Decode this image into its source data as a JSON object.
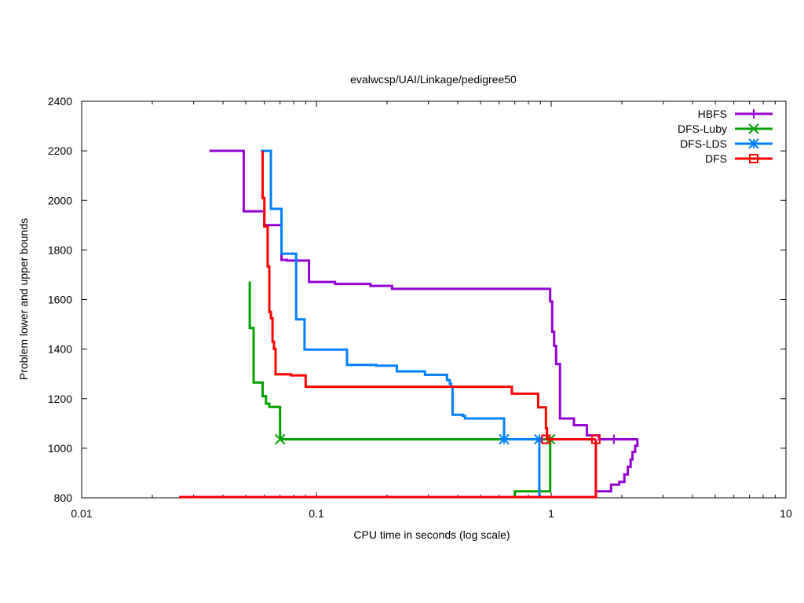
{
  "chart_data": {
    "type": "line",
    "title": "evalwcsp/UAI/Linkage/pedigree50",
    "xlabel": "CPU time in seconds (log scale)",
    "ylabel": "Problem lower and upper bounds",
    "xscale": "log",
    "xlim": [
      0.01,
      10
    ],
    "ylim": [
      800,
      2400
    ],
    "x_ticks": [
      0.01,
      0.1,
      1,
      10
    ],
    "x_tick_labels": [
      "0.01",
      "0.1",
      "1",
      "10"
    ],
    "y_ticks": [
      800,
      1000,
      1200,
      1400,
      1600,
      1800,
      2000,
      2200,
      2400
    ],
    "y_tick_labels": [
      "800",
      "1000",
      "1200",
      "1400",
      "1600",
      "1800",
      "2000",
      "2200",
      "2400"
    ],
    "legend_position": "top-right",
    "grid": false,
    "series": [
      {
        "name": "HBFS",
        "color": "#9400d3",
        "marker": "plus",
        "marker_at": [
          [
            1.85,
            1036
          ]
        ],
        "upper": [
          [
            0.035,
            2200
          ],
          [
            0.049,
            2200
          ],
          [
            0.049,
            1956
          ],
          [
            0.06,
            1956
          ],
          [
            0.06,
            1900
          ],
          [
            0.071,
            1900
          ],
          [
            0.071,
            1760
          ],
          [
            0.075,
            1760
          ],
          [
            0.075,
            1757
          ],
          [
            0.093,
            1757
          ],
          [
            0.093,
            1671
          ],
          [
            0.12,
            1671
          ],
          [
            0.12,
            1663
          ],
          [
            0.17,
            1663
          ],
          [
            0.17,
            1655
          ],
          [
            0.21,
            1655
          ],
          [
            0.21,
            1643
          ],
          [
            0.99,
            1643
          ],
          [
            0.99,
            1592
          ],
          [
            1.01,
            1592
          ],
          [
            1.01,
            1470
          ],
          [
            1.03,
            1470
          ],
          [
            1.03,
            1413
          ],
          [
            1.05,
            1413
          ],
          [
            1.05,
            1340
          ],
          [
            1.09,
            1340
          ],
          [
            1.09,
            1120
          ],
          [
            1.25,
            1120
          ],
          [
            1.25,
            1093
          ],
          [
            1.42,
            1093
          ],
          [
            1.42,
            1052
          ],
          [
            1.6,
            1052
          ],
          [
            1.6,
            1036
          ],
          [
            2.35,
            1036
          ]
        ],
        "lower": [
          [
            0.026,
            803
          ],
          [
            1.55,
            803
          ],
          [
            1.55,
            826
          ],
          [
            1.8,
            826
          ],
          [
            1.8,
            853
          ],
          [
            1.95,
            853
          ],
          [
            1.95,
            864
          ],
          [
            2.05,
            864
          ],
          [
            2.05,
            894
          ],
          [
            2.12,
            894
          ],
          [
            2.12,
            925
          ],
          [
            2.18,
            925
          ],
          [
            2.18,
            955
          ],
          [
            2.22,
            955
          ],
          [
            2.22,
            985
          ],
          [
            2.28,
            985
          ],
          [
            2.28,
            1010
          ],
          [
            2.33,
            1010
          ],
          [
            2.33,
            1036
          ]
        ]
      },
      {
        "name": "DFS-Luby",
        "color": "#00a000",
        "marker": "x",
        "marker_at": [
          [
            0.07,
            1036
          ],
          [
            0.99,
            1036
          ]
        ],
        "upper": [
          [
            0.052,
            1673
          ],
          [
            0.052,
            1485
          ],
          [
            0.054,
            1485
          ],
          [
            0.054,
            1265
          ],
          [
            0.059,
            1265
          ],
          [
            0.059,
            1210
          ],
          [
            0.061,
            1210
          ],
          [
            0.061,
            1180
          ],
          [
            0.063,
            1180
          ],
          [
            0.063,
            1167
          ],
          [
            0.07,
            1167
          ],
          [
            0.07,
            1036
          ],
          [
            0.99,
            1036
          ]
        ],
        "lower": [
          [
            0.7,
            803
          ],
          [
            0.7,
            826
          ],
          [
            0.99,
            826
          ],
          [
            0.99,
            1036
          ]
        ]
      },
      {
        "name": "DFS-LDS",
        "color": "#0080ff",
        "marker": "star",
        "marker_at": [
          [
            0.63,
            1036
          ],
          [
            0.89,
            1036
          ]
        ],
        "upper": [
          [
            0.058,
            2200
          ],
          [
            0.064,
            2200
          ],
          [
            0.064,
            1966
          ],
          [
            0.071,
            1966
          ],
          [
            0.071,
            1785
          ],
          [
            0.082,
            1785
          ],
          [
            0.082,
            1520
          ],
          [
            0.089,
            1520
          ],
          [
            0.089,
            1398
          ],
          [
            0.135,
            1398
          ],
          [
            0.135,
            1336
          ],
          [
            0.18,
            1336
          ],
          [
            0.18,
            1333
          ],
          [
            0.22,
            1333
          ],
          [
            0.22,
            1310
          ],
          [
            0.29,
            1310
          ],
          [
            0.29,
            1296
          ],
          [
            0.36,
            1296
          ],
          [
            0.36,
            1275
          ],
          [
            0.37,
            1275
          ],
          [
            0.37,
            1260
          ],
          [
            0.375,
            1260
          ],
          [
            0.375,
            1248
          ],
          [
            0.38,
            1248
          ],
          [
            0.38,
            1135
          ],
          [
            0.42,
            1135
          ],
          [
            0.42,
            1130
          ],
          [
            0.43,
            1130
          ],
          [
            0.43,
            1120
          ],
          [
            0.63,
            1120
          ],
          [
            0.63,
            1036
          ],
          [
            0.89,
            1036
          ]
        ],
        "lower": [
          [
            0.89,
            803
          ],
          [
            0.89,
            1036
          ]
        ]
      },
      {
        "name": "DFS",
        "color": "#ff0000",
        "marker": "square",
        "marker_at": [
          [
            0.95,
            1036
          ],
          [
            1.55,
            1036
          ]
        ],
        "upper": [
          [
            0.059,
            2200
          ],
          [
            0.059,
            2010
          ],
          [
            0.06,
            2010
          ],
          [
            0.06,
            1895
          ],
          [
            0.062,
            1895
          ],
          [
            0.062,
            1733
          ],
          [
            0.063,
            1733
          ],
          [
            0.063,
            1550
          ],
          [
            0.064,
            1550
          ],
          [
            0.064,
            1525
          ],
          [
            0.065,
            1525
          ],
          [
            0.065,
            1430
          ],
          [
            0.066,
            1430
          ],
          [
            0.066,
            1400
          ],
          [
            0.067,
            1400
          ],
          [
            0.067,
            1298
          ],
          [
            0.078,
            1298
          ],
          [
            0.078,
            1294
          ],
          [
            0.09,
            1294
          ],
          [
            0.09,
            1248
          ],
          [
            0.68,
            1248
          ],
          [
            0.68,
            1220
          ],
          [
            0.88,
            1220
          ],
          [
            0.88,
            1165
          ],
          [
            0.95,
            1165
          ],
          [
            0.95,
            1080
          ],
          [
            0.96,
            1080
          ],
          [
            0.96,
            1036
          ],
          [
            1.55,
            1036
          ]
        ],
        "lower": [
          [
            0.026,
            803
          ],
          [
            1.55,
            803
          ],
          [
            1.55,
            1036
          ]
        ]
      }
    ]
  }
}
